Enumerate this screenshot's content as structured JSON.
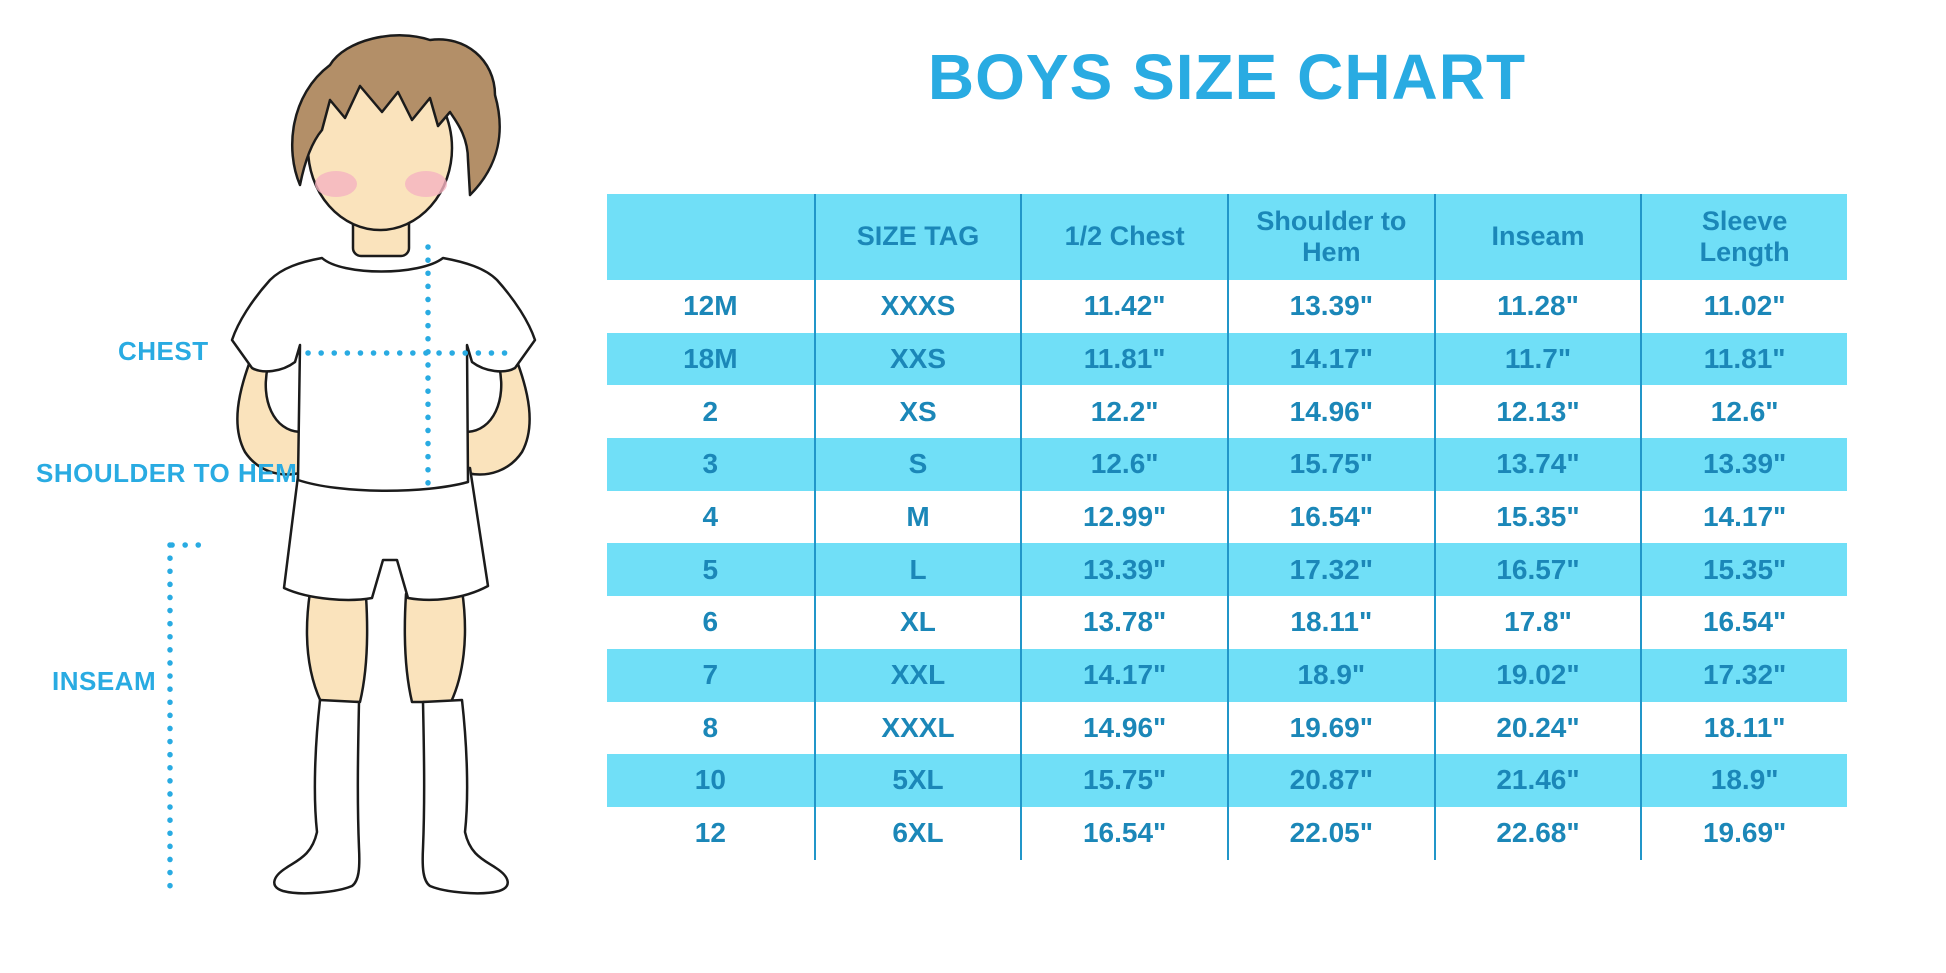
{
  "title": "BOYS SIZE CHART",
  "colors": {
    "accent_blue": "#29ABE2",
    "table_band": "#70DFF7",
    "table_text": "#1B87B8",
    "separator_line": "#2196C9",
    "skin": "#FAE3BC",
    "hair": "#B38F68",
    "blush": "#F5B3C0"
  },
  "figure": {
    "labels": {
      "chest": "CHEST",
      "shoulder_to_hem": "SHOULDER TO HEM",
      "inseam": "INSEAM"
    }
  },
  "table": {
    "headers": [
      "",
      "SIZE TAG",
      "1/2 Chest",
      "Shoulder to Hem",
      "Inseam",
      "Sleeve Length"
    ],
    "rows": [
      [
        "12M",
        "XXXS",
        "11.42\"",
        "13.39\"",
        "11.28\"",
        "11.02\""
      ],
      [
        "18M",
        "XXS",
        "11.81\"",
        "14.17\"",
        "11.7\"",
        "11.81\""
      ],
      [
        "2",
        "XS",
        "12.2\"",
        "14.96\"",
        "12.13\"",
        "12.6\""
      ],
      [
        "3",
        "S",
        "12.6\"",
        "15.75\"",
        "13.74\"",
        "13.39\""
      ],
      [
        "4",
        "M",
        "12.99\"",
        "16.54\"",
        "15.35\"",
        "14.17\""
      ],
      [
        "5",
        "L",
        "13.39\"",
        "17.32\"",
        "16.57\"",
        "15.35\""
      ],
      [
        "6",
        "XL",
        "13.78\"",
        "18.11\"",
        "17.8\"",
        "16.54\""
      ],
      [
        "7",
        "XXL",
        "14.17\"",
        "18.9\"",
        "19.02\"",
        "17.32\""
      ],
      [
        "8",
        "XXXL",
        "14.96\"",
        "19.69\"",
        "20.24\"",
        "18.11\""
      ],
      [
        "10",
        "5XL",
        "15.75\"",
        "20.87\"",
        "21.46\"",
        "18.9\""
      ],
      [
        "12",
        "6XL",
        "16.54\"",
        "22.05\"",
        "22.68\"",
        "19.69\""
      ]
    ]
  }
}
